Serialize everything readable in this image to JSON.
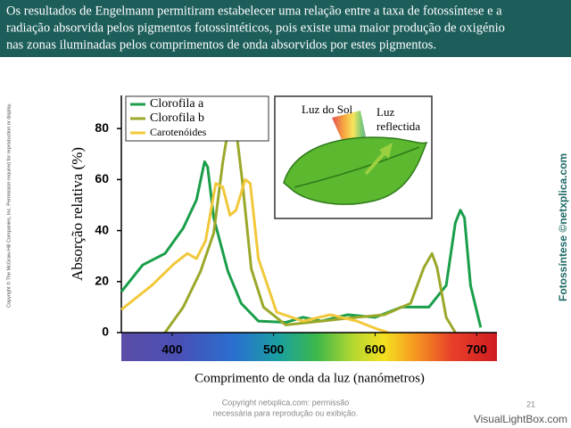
{
  "header": {
    "lines": [
      "Os resultados de Engelmann permitiram estabelecer uma relação entre a taxa de fotossíntese e a",
      "radiação absorvida pelos pigmentos fotossintéticos, pois existe uma maior produção de oxigénio",
      "nas zonas iluminadas pelos comprimentos de onda absorvidos por estes pigmentos."
    ]
  },
  "side_left": "Copyright © The McGraw-Hill Companies, Inc. Permission required for reproduction or display.",
  "side_right": "Fotossíntese ©netxplica.com",
  "inset": {
    "sun": "Luz do Sol",
    "reflected": [
      "Luz",
      "reflectida"
    ]
  },
  "footer": {
    "lines": [
      "Copyright netxplica.com: permissão",
      "necessária para reprodução ou exibição."
    ],
    "page": "21",
    "brand": "VisualLightBox.com"
  },
  "chart_data": {
    "type": "line",
    "xlabel": "Comprimento de onda da luz (nanómetros)",
    "ylabel": "Absorção relativa (%)",
    "xlim": [
      350,
      720
    ],
    "ylim": [
      0,
      93
    ],
    "xticks": [
      400,
      500,
      600,
      700
    ],
    "yticks": [
      0,
      20,
      40,
      60,
      80
    ],
    "legend": "upper left",
    "series": [
      {
        "name": "Clorofila a",
        "color": "#1a9e4a",
        "x": [
          350,
          371,
          393,
          411,
          424,
          432,
          435,
          441,
          455,
          468,
          485,
          512,
          529,
          547,
          573,
          600,
          626,
          653,
          670,
          679,
          684,
          688,
          694,
          704
        ],
        "values": [
          16,
          26.5,
          31,
          41,
          52,
          67,
          65,
          45,
          24,
          11.5,
          4.5,
          4,
          6,
          4.5,
          7,
          6,
          10,
          10,
          18.5,
          43,
          48,
          45,
          18.5,
          2
        ]
      },
      {
        "name": "Clorofila b",
        "color": "#9ba82a",
        "x": [
          393,
          411,
          428,
          441,
          450,
          457,
          462,
          469,
          478,
          490,
          512,
          547,
          582,
          609,
          635,
          648,
          656,
          661,
          670,
          679
        ],
        "values": [
          0,
          10,
          24,
          39,
          67,
          84,
          83,
          60,
          25,
          10,
          3,
          4.5,
          6,
          7,
          11.5,
          25.5,
          31,
          25.5,
          6,
          0
        ]
      },
      {
        "name": "Carotenóides",
        "color": "#f2c83a",
        "x": [
          350,
          380,
          402,
          415,
          424,
          433,
          443,
          450,
          457,
          463,
          472,
          477,
          485,
          503,
          529,
          556,
          582,
          600,
          613
        ],
        "values": [
          9,
          18.5,
          27,
          31,
          29,
          36,
          58.5,
          57,
          46,
          48,
          60,
          58.5,
          29,
          8,
          4.5,
          7,
          4.5,
          1.7,
          0
        ]
      }
    ]
  }
}
